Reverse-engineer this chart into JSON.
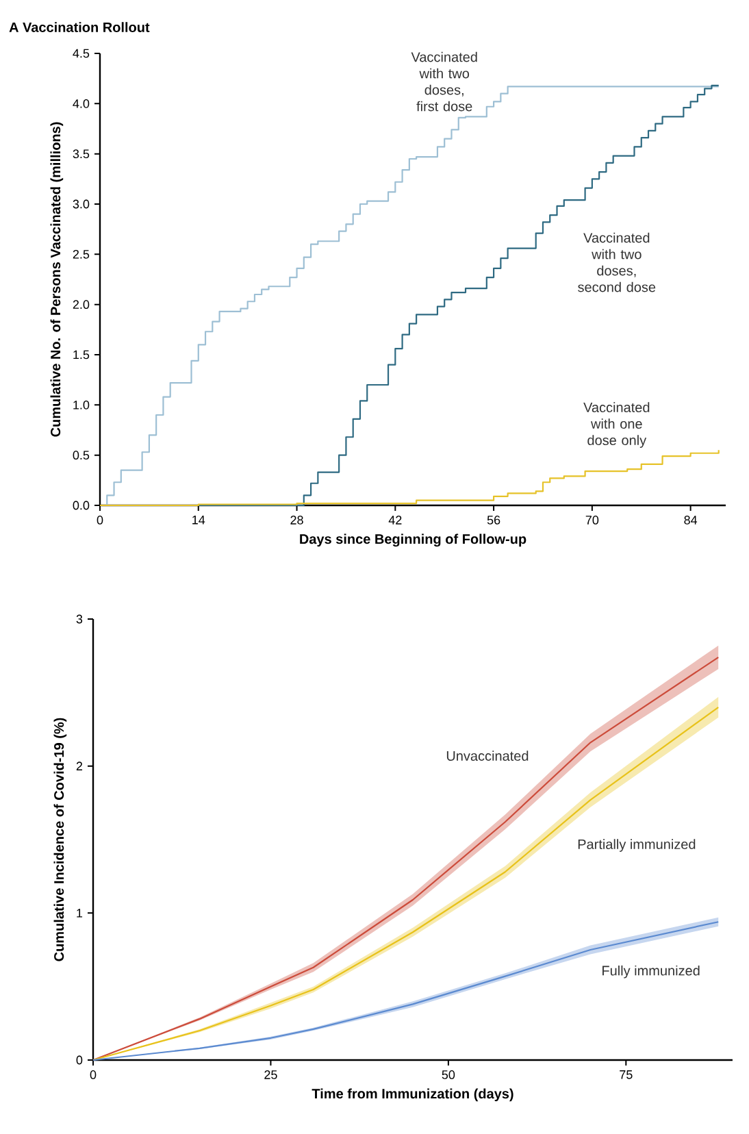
{
  "chart_data": [
    {
      "type": "step",
      "title": "A  Vaccination Rollout",
      "xlabel": "Days since Beginning of Follow-up",
      "ylabel": "Cumulative No. of Persons Vaccinated (millions)",
      "xlim": [
        0,
        89
      ],
      "ylim": [
        0,
        4.5
      ],
      "xticks": [
        0,
        14,
        28,
        42,
        56,
        70,
        84
      ],
      "yticks": [
        {
          "value": 0,
          "label": "0.0"
        },
        0.5,
        {
          "value": 1,
          "label": "1.0"
        },
        1.5,
        {
          "value": 2,
          "label": "2.0"
        },
        2.5,
        {
          "value": 3,
          "label": "3.0"
        },
        3.5,
        {
          "value": 4,
          "label": "4.0"
        },
        4.5
      ],
      "series": [
        {
          "name": "Vaccinated with two doses, first dose",
          "color": "#9dbfd4",
          "x": [
            0,
            1,
            2,
            3,
            6,
            7,
            8,
            9,
            10,
            13,
            14,
            15,
            16,
            17,
            20,
            21,
            22,
            23,
            24,
            27,
            28,
            29,
            30,
            31,
            34,
            35,
            36,
            37,
            38,
            41,
            42,
            43,
            44,
            45,
            48,
            49,
            50,
            51,
            52,
            55,
            56,
            57,
            58,
            88
          ],
          "values": [
            0,
            0.1,
            0.23,
            0.35,
            0.53,
            0.7,
            0.9,
            1.08,
            1.22,
            1.44,
            1.6,
            1.73,
            1.83,
            1.93,
            1.96,
            2.03,
            2.1,
            2.15,
            2.18,
            2.27,
            2.36,
            2.47,
            2.6,
            2.63,
            2.73,
            2.8,
            2.9,
            3.0,
            3.03,
            3.12,
            3.22,
            3.34,
            3.45,
            3.47,
            3.57,
            3.65,
            3.74,
            3.86,
            3.87,
            3.97,
            4.02,
            4.1,
            4.17,
            4.17
          ]
        },
        {
          "name": "Vaccinated with two doses, second dose",
          "color": "#2e6a82",
          "x": [
            0,
            28,
            29,
            30,
            31,
            34,
            35,
            36,
            37,
            38,
            41,
            42,
            43,
            44,
            45,
            48,
            49,
            50,
            52,
            55,
            56,
            57,
            58,
            62,
            63,
            64,
            65,
            66,
            69,
            70,
            71,
            72,
            73,
            76,
            77,
            78,
            79,
            80,
            83,
            84,
            85,
            86,
            87,
            88
          ],
          "values": [
            0,
            0,
            0.1,
            0.22,
            0.33,
            0.5,
            0.68,
            0.86,
            1.04,
            1.2,
            1.4,
            1.56,
            1.7,
            1.81,
            1.9,
            1.98,
            2.05,
            2.12,
            2.16,
            2.27,
            2.36,
            2.46,
            2.56,
            2.71,
            2.82,
            2.89,
            2.98,
            3.04,
            3.16,
            3.25,
            3.32,
            3.41,
            3.48,
            3.57,
            3.66,
            3.73,
            3.8,
            3.87,
            3.96,
            4.02,
            4.09,
            4.15,
            4.18,
            4.18
          ]
        },
        {
          "name": "Vaccinated with one dose only",
          "color": "#e6c229",
          "x": [
            0,
            14,
            28,
            45,
            56,
            58,
            62,
            63,
            64,
            66,
            69,
            75,
            77,
            80,
            84,
            88
          ],
          "values": [
            0,
            0.01,
            0.02,
            0.05,
            0.09,
            0.12,
            0.14,
            0.23,
            0.27,
            0.29,
            0.34,
            0.36,
            0.41,
            0.49,
            0.52,
            0.55
          ]
        }
      ]
    },
    {
      "type": "line",
      "xlabel": "Time from Immunization (days)",
      "ylabel": "Cumulative Incidence of Covid-19 (%)",
      "xlim": [
        0,
        90
      ],
      "ylim": [
        0,
        3
      ],
      "xticks": [
        0,
        25,
        50,
        75
      ],
      "yticks": [
        0,
        1,
        2,
        3
      ],
      "x": [
        0,
        15,
        25,
        31,
        45,
        58,
        70,
        88
      ],
      "series": [
        {
          "name": "Unvaccinated",
          "color": "#cc4b3a",
          "values": [
            0,
            0.28,
            0.5,
            0.63,
            1.09,
            1.62,
            2.16,
            2.74
          ],
          "lower": [
            0,
            0.27,
            0.48,
            0.6,
            1.05,
            1.57,
            2.1,
            2.66
          ],
          "upper": [
            0,
            0.29,
            0.52,
            0.66,
            1.13,
            1.67,
            2.22,
            2.82
          ]
        },
        {
          "name": "Partially immunized",
          "color": "#e8c21a",
          "values": [
            0,
            0.2,
            0.37,
            0.48,
            0.87,
            1.28,
            1.77,
            2.4
          ],
          "lower": [
            0,
            0.19,
            0.35,
            0.46,
            0.84,
            1.24,
            1.72,
            2.33
          ],
          "upper": [
            0,
            0.21,
            0.39,
            0.5,
            0.9,
            1.32,
            1.82,
            2.47
          ]
        },
        {
          "name": "Fully immunized",
          "color": "#5b8ad0",
          "values": [
            0,
            0.08,
            0.15,
            0.21,
            0.38,
            0.57,
            0.75,
            0.94
          ],
          "lower": [
            0,
            0.075,
            0.14,
            0.2,
            0.36,
            0.55,
            0.72,
            0.91
          ],
          "upper": [
            0,
            0.085,
            0.16,
            0.22,
            0.4,
            0.59,
            0.78,
            0.97
          ]
        }
      ]
    }
  ]
}
